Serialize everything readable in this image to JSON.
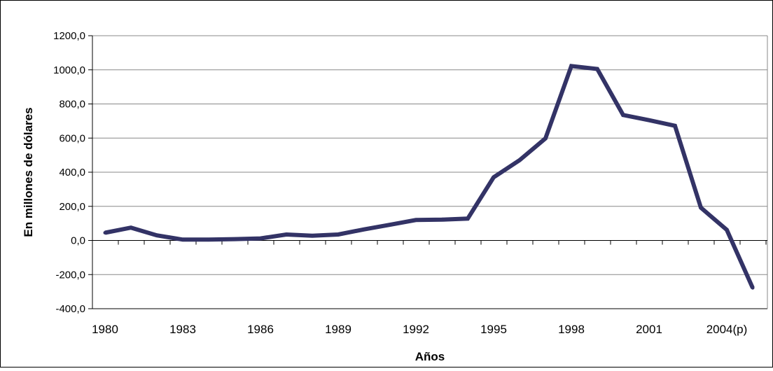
{
  "chart_data": {
    "type": "line",
    "title": "",
    "xlabel": "Años",
    "ylabel": "En millones de dólares",
    "x": [
      1980,
      1981,
      1982,
      1983,
      1984,
      1985,
      1986,
      1987,
      1988,
      1989,
      1990,
      1991,
      1992,
      1993,
      1994,
      1995,
      1996,
      1997,
      1998,
      1999,
      2000,
      2001,
      2002,
      2003,
      2004,
      2005
    ],
    "x_tick_labels": [
      "1980",
      "1983",
      "1986",
      "1989",
      "1992",
      "1995",
      "1998",
      "2001",
      "2004(p)"
    ],
    "y_tick_labels": [
      "-400,0",
      "-200,0",
      "0,0",
      "200,0",
      "400,0",
      "600,0",
      "800,0",
      "1000,0",
      "1200,0"
    ],
    "ylim": [
      -400,
      1200
    ],
    "grid": true,
    "legend": "none",
    "series": [
      {
        "color": "#333366",
        "values": [
          45,
          75,
          30,
          5,
          5,
          8,
          12,
          35,
          28,
          35,
          65,
          92,
          120,
          122,
          128,
          370,
          470,
          598,
          1022,
          1005,
          735,
          705,
          672,
          192,
          62,
          -278
        ]
      }
    ]
  }
}
